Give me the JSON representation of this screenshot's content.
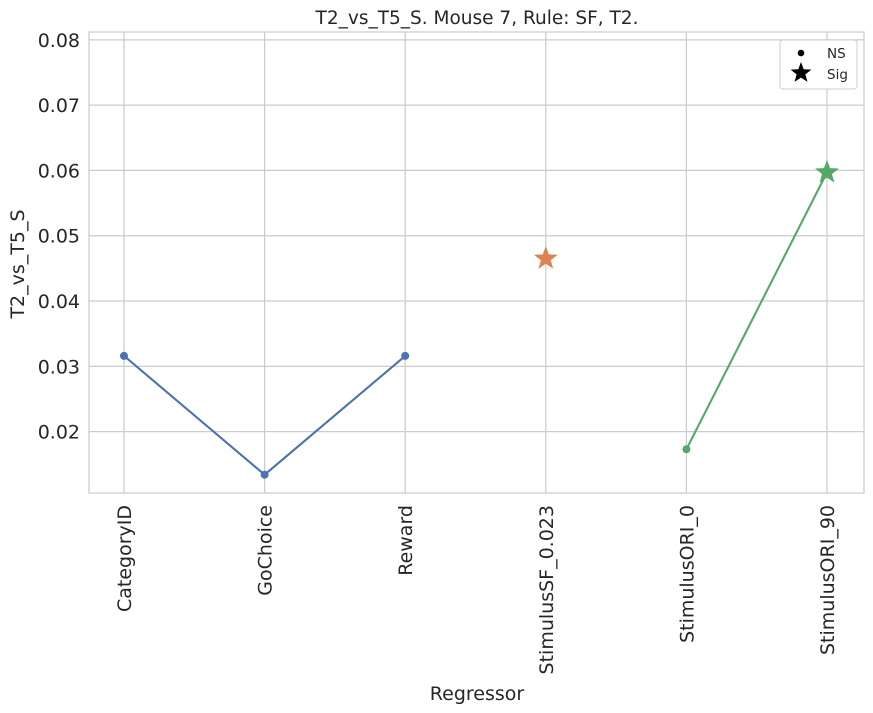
{
  "chart_data": {
    "type": "line",
    "title": "T2_vs_T5_S. Mouse 7, Rule: SF, T2.",
    "xlabel": "Regressor",
    "ylabel": "T2_vs_T5_S",
    "categories": [
      "CategoryID",
      "GoChoice",
      "Reward",
      "StimulusSF_0.023",
      "StimulusORI_0",
      "StimulusORI_90"
    ],
    "ylim": [
      0.0106,
      0.0812
    ],
    "yticks": [
      "0.02",
      "0.03",
      "0.04",
      "0.05",
      "0.06",
      "0.07",
      "0.08"
    ],
    "grid": true,
    "legend_position": "top-right",
    "legend": [
      {
        "label": "NS",
        "marker": "dot"
      },
      {
        "label": "Sig",
        "marker": "star"
      }
    ],
    "series": [
      {
        "color": "#4c72b0",
        "points": [
          {
            "x": "CategoryID",
            "y": 0.0316,
            "sig": false
          },
          {
            "x": "GoChoice",
            "y": 0.0134,
            "sig": false
          },
          {
            "x": "Reward",
            "y": 0.0316,
            "sig": false
          }
        ]
      },
      {
        "color": "#dd8452",
        "points": [
          {
            "x": "StimulusSF_0.023",
            "y": 0.0465,
            "sig": true
          }
        ]
      },
      {
        "color": "#55a868",
        "points": [
          {
            "x": "StimulusORI_0",
            "y": 0.0173,
            "sig": false
          },
          {
            "x": "StimulusORI_90",
            "y": 0.0597,
            "sig": true
          }
        ]
      }
    ]
  }
}
